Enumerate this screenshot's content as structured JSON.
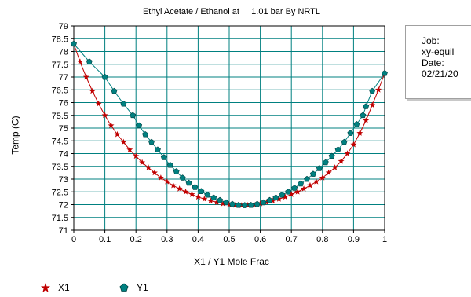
{
  "chart_data": {
    "type": "line",
    "title": "Ethyl Acetate / Ethanol at     1.01 bar By NRTL",
    "xlabel": "X1 / Y1 Mole Frac",
    "ylabel": "Temp (C)",
    "xlim": [
      0,
      1
    ],
    "ylim": [
      71,
      79
    ],
    "x_ticks": [
      "0",
      "0.1",
      "0.2",
      "0.3",
      "0.4",
      "0.5",
      "0.6",
      "0.7",
      "0.8",
      "0.9",
      "1"
    ],
    "y_ticks": [
      "79",
      "78.5",
      "78",
      "77.5",
      "77",
      "76.5",
      "76",
      "75.5",
      "75",
      "74.5",
      "74",
      "73.5",
      "73",
      "72.5",
      "72",
      "71.5",
      "71"
    ],
    "grid": true,
    "legend_position": "bottom-left",
    "series": [
      {
        "name": "X1",
        "color": "#c00000",
        "marker": "star",
        "points": [
          [
            0,
            78.3
          ],
          [
            0.02,
            77.6
          ],
          [
            0.04,
            77.0
          ],
          [
            0.06,
            76.45
          ],
          [
            0.08,
            75.95
          ],
          [
            0.1,
            75.5
          ],
          [
            0.12,
            75.1
          ],
          [
            0.14,
            74.75
          ],
          [
            0.16,
            74.45
          ],
          [
            0.18,
            74.15
          ],
          [
            0.2,
            73.9
          ],
          [
            0.22,
            73.65
          ],
          [
            0.24,
            73.45
          ],
          [
            0.26,
            73.25
          ],
          [
            0.28,
            73.05
          ],
          [
            0.3,
            72.9
          ],
          [
            0.32,
            72.75
          ],
          [
            0.34,
            72.62
          ],
          [
            0.36,
            72.5
          ],
          [
            0.38,
            72.4
          ],
          [
            0.4,
            72.3
          ],
          [
            0.42,
            72.22
          ],
          [
            0.44,
            72.15
          ],
          [
            0.46,
            72.09
          ],
          [
            0.48,
            72.04
          ],
          [
            0.5,
            72.0
          ],
          [
            0.52,
            71.98
          ],
          [
            0.54,
            71.97
          ],
          [
            0.56,
            71.98
          ],
          [
            0.58,
            72.0
          ],
          [
            0.6,
            72.04
          ],
          [
            0.62,
            72.09
          ],
          [
            0.64,
            72.15
          ],
          [
            0.66,
            72.22
          ],
          [
            0.68,
            72.3
          ],
          [
            0.7,
            72.4
          ],
          [
            0.72,
            72.5
          ],
          [
            0.74,
            72.62
          ],
          [
            0.76,
            72.75
          ],
          [
            0.78,
            72.9
          ],
          [
            0.8,
            73.05
          ],
          [
            0.82,
            73.25
          ],
          [
            0.84,
            73.45
          ],
          [
            0.86,
            73.7
          ],
          [
            0.88,
            74.0
          ],
          [
            0.9,
            74.35
          ],
          [
            0.92,
            74.8
          ],
          [
            0.94,
            75.3
          ],
          [
            0.96,
            75.9
          ],
          [
            0.98,
            76.5
          ],
          [
            1,
            77.15
          ]
        ]
      },
      {
        "name": "Y1",
        "color": "#008080",
        "marker": "pentagon",
        "points": [
          [
            0,
            78.3
          ],
          [
            0.05,
            77.6
          ],
          [
            0.1,
            77.0
          ],
          [
            0.13,
            76.45
          ],
          [
            0.16,
            75.95
          ],
          [
            0.19,
            75.5
          ],
          [
            0.21,
            75.1
          ],
          [
            0.23,
            74.75
          ],
          [
            0.25,
            74.45
          ],
          [
            0.27,
            74.15
          ],
          [
            0.29,
            73.85
          ],
          [
            0.31,
            73.55
          ],
          [
            0.33,
            73.3
          ],
          [
            0.35,
            73.05
          ],
          [
            0.37,
            72.85
          ],
          [
            0.39,
            72.68
          ],
          [
            0.41,
            72.52
          ],
          [
            0.43,
            72.38
          ],
          [
            0.45,
            72.27
          ],
          [
            0.47,
            72.17
          ],
          [
            0.49,
            72.08
          ],
          [
            0.51,
            72.02
          ],
          [
            0.53,
            71.98
          ],
          [
            0.55,
            71.97
          ],
          [
            0.57,
            71.98
          ],
          [
            0.59,
            72.02
          ],
          [
            0.61,
            72.08
          ],
          [
            0.63,
            72.17
          ],
          [
            0.65,
            72.27
          ],
          [
            0.67,
            72.38
          ],
          [
            0.69,
            72.5
          ],
          [
            0.71,
            72.65
          ],
          [
            0.73,
            72.82
          ],
          [
            0.75,
            73.0
          ],
          [
            0.77,
            73.2
          ],
          [
            0.79,
            73.42
          ],
          [
            0.81,
            73.65
          ],
          [
            0.83,
            73.9
          ],
          [
            0.85,
            74.15
          ],
          [
            0.87,
            74.45
          ],
          [
            0.89,
            74.8
          ],
          [
            0.91,
            75.15
          ],
          [
            0.93,
            75.5
          ],
          [
            0.94,
            75.85
          ],
          [
            0.96,
            76.45
          ],
          [
            1,
            77.15
          ]
        ]
      }
    ]
  },
  "info_box": {
    "job_label": "Job:",
    "job_value": "xy-equil",
    "date_label": "Date:",
    "date_value": "02/21/20"
  }
}
